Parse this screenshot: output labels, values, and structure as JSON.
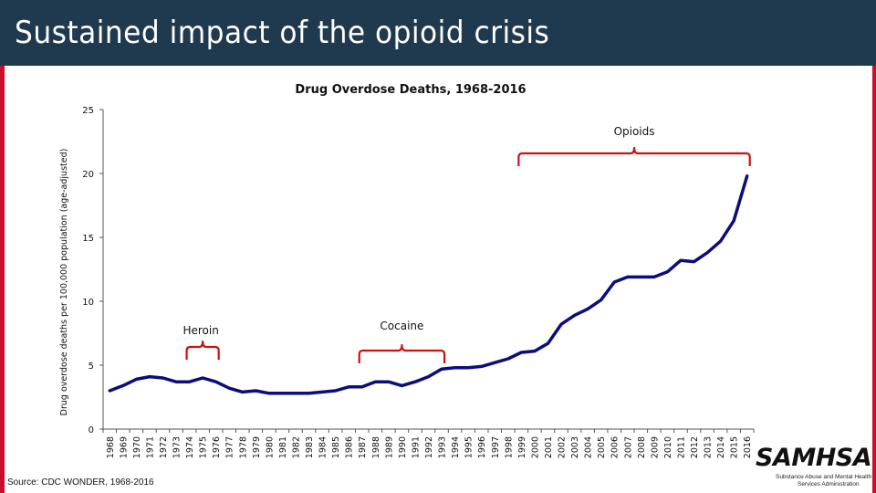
{
  "header": {
    "title": "Sustained impact of the opioid crisis"
  },
  "colors": {
    "header_bg": "#1f3a4f",
    "accent": "#c8102e",
    "line": "#0b0e7a",
    "bracket": "#cc1111"
  },
  "chart_data": {
    "type": "line",
    "title": "Drug Overdose Deaths, 1968-2016",
    "xlabel": "",
    "ylabel": "Drug overdose deaths per 100,000 population (age-adjusted)",
    "ylim": [
      0,
      25
    ],
    "yticks": [
      0,
      5,
      10,
      15,
      20,
      25
    ],
    "x": [
      1968,
      1969,
      1970,
      1971,
      1972,
      1973,
      1974,
      1975,
      1976,
      1977,
      1978,
      1979,
      1980,
      1981,
      1982,
      1983,
      1984,
      1985,
      1986,
      1987,
      1988,
      1989,
      1990,
      1991,
      1992,
      1993,
      1994,
      1995,
      1996,
      1997,
      1998,
      1999,
      2000,
      2001,
      2002,
      2003,
      2004,
      2005,
      2006,
      2007,
      2008,
      2009,
      2010,
      2011,
      2012,
      2013,
      2014,
      2015,
      2016
    ],
    "series": [
      {
        "name": "Drug overdose deaths",
        "values": [
          3.0,
          3.4,
          3.9,
          4.1,
          4.0,
          3.7,
          3.7,
          4.0,
          3.7,
          3.2,
          2.9,
          3.0,
          2.8,
          2.8,
          2.8,
          2.8,
          2.9,
          3.0,
          3.3,
          3.3,
          3.7,
          3.7,
          3.4,
          3.7,
          4.1,
          4.7,
          4.8,
          4.8,
          4.9,
          5.2,
          5.5,
          6.0,
          6.1,
          6.7,
          8.2,
          8.9,
          9.4,
          10.1,
          11.5,
          11.9,
          11.9,
          11.9,
          12.3,
          13.2,
          13.1,
          13.8,
          14.7,
          16.3,
          19.8
        ]
      }
    ],
    "annotations": [
      {
        "label": "Heroin",
        "x_start": 1974,
        "x_end": 1976
      },
      {
        "label": "Cocaine",
        "x_start": 1987,
        "x_end": 1993
      },
      {
        "label": "Opioids",
        "x_start": 1999,
        "x_end": 2016
      }
    ]
  },
  "source": "Source: CDC WONDER, 1968-2016",
  "logo": {
    "wordmark": "SAMHSA",
    "line1": "Substance Abuse and Mental Health",
    "line2": "Services Administration"
  }
}
